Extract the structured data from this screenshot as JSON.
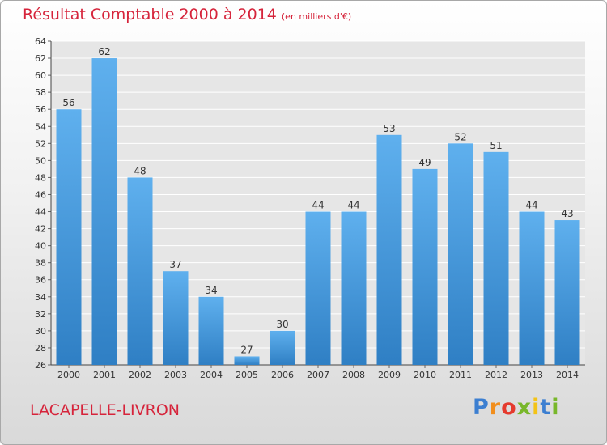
{
  "chart_data": {
    "type": "bar",
    "title": "Résultat Comptable 2000 à 2014",
    "subtitle": "(en milliers d'€)",
    "categories": [
      "2000",
      "2001",
      "2002",
      "2003",
      "2004",
      "2005",
      "2006",
      "2007",
      "2008",
      "2009",
      "2010",
      "2011",
      "2012",
      "2013",
      "2014"
    ],
    "values": [
      56,
      62,
      48,
      37,
      34,
      27,
      30,
      44,
      44,
      53,
      49,
      52,
      51,
      44,
      43
    ],
    "ylim": [
      26,
      64
    ],
    "ytick_step": 2,
    "grid": true,
    "bar_color": "#3f97dd"
  },
  "location": "LACAPELLE-LIVRON",
  "logo": {
    "letters": [
      "P",
      "r",
      "o",
      "x",
      "i",
      "t",
      "i"
    ],
    "colors": [
      "#3c7fd1",
      "#f18e1c",
      "#e53a2e",
      "#78b72a",
      "#f3c316",
      "#3c7fd1",
      "#78b72a"
    ]
  }
}
